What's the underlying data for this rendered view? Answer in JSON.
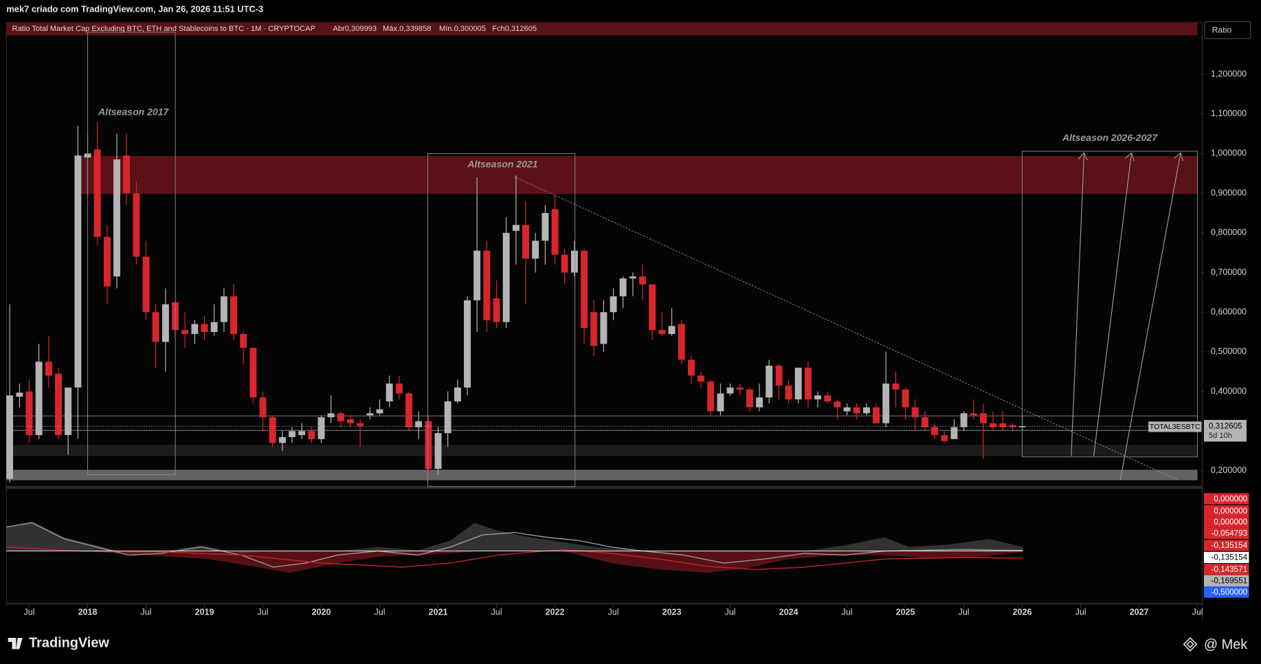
{
  "caption": "mek7 criado com TradingView.com, Jan 26, 2026 11:51 UTC-3",
  "chart_data": {
    "type": "candlestick",
    "title": "Ratio Total Market Cap Excluding BTC, ETH and Stablecoins to BTC · 1M · CRYPTOCAP",
    "ohlc_labels": [
      "Abr0,309993",
      "Máx.0,339858",
      "Mín.0,300005",
      "Fch0,312605"
    ],
    "y_axis_label": "Ratio",
    "x": [
      2017.333,
      2017.417,
      2017.5,
      2017.583,
      2017.667,
      2017.75,
      2017.833,
      2017.917,
      2018,
      2018.083,
      2018.167,
      2018.25,
      2018.333,
      2018.417,
      2018.5,
      2018.583,
      2018.667,
      2018.75,
      2018.833,
      2018.917,
      2019,
      2019.083,
      2019.167,
      2019.25,
      2019.333,
      2019.417,
      2019.5,
      2019.583,
      2019.667,
      2019.75,
      2019.833,
      2019.917,
      2020,
      2020.083,
      2020.167,
      2020.25,
      2020.333,
      2020.417,
      2020.5,
      2020.583,
      2020.667,
      2020.75,
      2020.833,
      2020.917,
      2021,
      2021.083,
      2021.167,
      2021.25,
      2021.333,
      2021.417,
      2021.5,
      2021.583,
      2021.667,
      2021.75,
      2021.833,
      2021.917,
      2022,
      2022.083,
      2022.167,
      2022.25,
      2022.333,
      2022.417,
      2022.5,
      2022.583,
      2022.667,
      2022.75,
      2022.833,
      2022.917,
      2023,
      2023.083,
      2023.167,
      2023.25,
      2023.333,
      2023.417,
      2023.5,
      2023.583,
      2023.667,
      2023.75,
      2023.833,
      2023.917,
      2024,
      2024.083,
      2024.167,
      2024.25,
      2024.333,
      2024.417,
      2024.5,
      2024.583,
      2024.667,
      2024.75,
      2024.833,
      2024.917,
      2025,
      2025.083,
      2025.167,
      2025.25,
      2025.333,
      2025.417,
      2025.5,
      2025.583,
      2025.667,
      2025.75,
      2025.833,
      2025.917,
      2026
    ],
    "open": [
      0.18,
      0.387,
      0.4,
      0.29,
      0.475,
      0.445,
      0.29,
      0.41,
      0.99,
      1.01,
      0.79,
      0.69,
      0.995,
      0.9,
      0.74,
      0.6,
      0.525,
      0.625,
      0.555,
      0.545,
      0.57,
      0.55,
      0.575,
      0.64,
      0.545,
      0.51,
      0.385,
      0.335,
      0.27,
      0.285,
      0.29,
      0.3,
      0.28,
      0.335,
      0.345,
      0.33,
      0.32,
      0.34,
      0.345,
      0.375,
      0.42,
      0.395,
      0.31,
      0.325,
      0.205,
      0.295,
      0.375,
      0.41,
      0.63,
      0.755,
      0.635,
      0.575,
      0.805,
      0.82,
      0.735,
      0.78,
      0.86,
      0.745,
      0.7,
      0.755,
      0.6,
      0.52,
      0.6,
      0.64,
      0.685,
      0.69,
      0.67,
      0.555,
      0.545,
      0.57,
      0.48,
      0.44,
      0.425,
      0.35,
      0.395,
      0.41,
      0.405,
      0.36,
      0.385,
      0.465,
      0.415,
      0.38,
      0.46,
      0.38,
      0.39,
      0.375,
      0.35,
      0.36,
      0.345,
      0.36,
      0.32,
      0.42,
      0.405,
      0.36,
      0.335,
      0.31,
      0.29,
      0.28,
      0.31,
      0.345,
      0.345,
      0.32,
      0.32,
      0.315,
      0.309993
    ],
    "high": [
      0.62,
      0.42,
      0.43,
      0.52,
      0.54,
      0.46,
      0.41,
      1.07,
      1.05,
      1.08,
      0.82,
      1.05,
      1.05,
      0.93,
      0.78,
      0.62,
      0.66,
      0.63,
      0.6,
      0.58,
      0.59,
      0.62,
      0.66,
      0.67,
      0.55,
      0.51,
      0.4,
      0.34,
      0.3,
      0.31,
      0.32,
      0.31,
      0.34,
      0.39,
      0.35,
      0.34,
      0.33,
      0.36,
      0.38,
      0.44,
      0.44,
      0.4,
      0.35,
      0.34,
      0.31,
      0.4,
      0.43,
      0.64,
      0.94,
      0.78,
      0.68,
      0.84,
      0.945,
      0.88,
      0.8,
      0.87,
      0.9,
      0.76,
      0.78,
      0.76,
      0.63,
      0.63,
      0.66,
      0.69,
      0.7,
      0.72,
      0.67,
      0.6,
      0.61,
      0.58,
      0.49,
      0.45,
      0.43,
      0.42,
      0.42,
      0.42,
      0.41,
      0.42,
      0.48,
      0.47,
      0.43,
      0.46,
      0.475,
      0.4,
      0.4,
      0.38,
      0.37,
      0.37,
      0.37,
      0.37,
      0.5,
      0.45,
      0.41,
      0.38,
      0.35,
      0.32,
      0.3,
      0.33,
      0.35,
      0.38,
      0.37,
      0.35,
      0.35,
      0.32,
      0.339858
    ],
    "low": [
      0.17,
      0.36,
      0.27,
      0.28,
      0.41,
      0.28,
      0.24,
      0.28,
      0.89,
      0.77,
      0.62,
      0.66,
      0.87,
      0.72,
      0.58,
      0.46,
      0.45,
      0.53,
      0.51,
      0.52,
      0.53,
      0.54,
      0.55,
      0.53,
      0.47,
      0.37,
      0.3,
      0.26,
      0.25,
      0.27,
      0.28,
      0.27,
      0.27,
      0.32,
      0.31,
      0.31,
      0.26,
      0.33,
      0.34,
      0.36,
      0.38,
      0.3,
      0.28,
      0.19,
      0.19,
      0.26,
      0.37,
      0.39,
      0.55,
      0.55,
      0.56,
      0.56,
      0.72,
      0.62,
      0.7,
      0.72,
      0.72,
      0.67,
      0.69,
      0.52,
      0.49,
      0.5,
      0.58,
      0.61,
      0.64,
      0.63,
      0.53,
      0.54,
      0.54,
      0.47,
      0.42,
      0.41,
      0.34,
      0.34,
      0.39,
      0.39,
      0.35,
      0.35,
      0.37,
      0.38,
      0.37,
      0.37,
      0.36,
      0.36,
      0.37,
      0.33,
      0.34,
      0.33,
      0.34,
      0.32,
      0.31,
      0.36,
      0.33,
      0.3,
      0.3,
      0.28,
      0.27,
      0.28,
      0.3,
      0.33,
      0.23,
      0.3,
      0.3,
      0.3,
      0.300005
    ],
    "close": [
      0.39,
      0.397,
      0.29,
      0.475,
      0.44,
      0.29,
      0.41,
      0.995,
      1.0,
      0.79,
      0.665,
      0.985,
      0.9,
      0.74,
      0.6,
      0.525,
      0.62,
      0.555,
      0.545,
      0.57,
      0.55,
      0.575,
      0.64,
      0.545,
      0.51,
      0.385,
      0.335,
      0.27,
      0.285,
      0.3,
      0.3,
      0.28,
      0.335,
      0.345,
      0.325,
      0.32,
      0.313,
      0.345,
      0.355,
      0.42,
      0.395,
      0.31,
      0.325,
      0.205,
      0.295,
      0.375,
      0.41,
      0.63,
      0.755,
      0.58,
      0.575,
      0.8,
      0.82,
      0.735,
      0.78,
      0.85,
      0.745,
      0.7,
      0.755,
      0.56,
      0.515,
      0.6,
      0.64,
      0.685,
      0.69,
      0.67,
      0.555,
      0.545,
      0.565,
      0.48,
      0.44,
      0.425,
      0.35,
      0.395,
      0.41,
      0.405,
      0.36,
      0.385,
      0.465,
      0.415,
      0.38,
      0.46,
      0.38,
      0.39,
      0.375,
      0.36,
      0.36,
      0.345,
      0.36,
      0.32,
      0.42,
      0.405,
      0.36,
      0.335,
      0.31,
      0.29,
      0.275,
      0.31,
      0.345,
      0.34,
      0.32,
      0.31,
      0.31,
      0.31,
      0.312605
    ],
    "up_color": "#b4b4b4",
    "down_color": "#d9262c",
    "xlim": [
      2017.25,
      2027.52
    ],
    "ylim": [
      0.16,
      1.33
    ],
    "xticks": [
      {
        "value": 2017.5,
        "label": "Jul"
      },
      2018,
      {
        "value": 2018.5,
        "label": "Jul"
      },
      2019,
      {
        "value": 2019.5,
        "label": "Jul"
      },
      2020,
      {
        "value": 2020.5,
        "label": "Jul"
      },
      2021,
      {
        "value": 2021.5,
        "label": "Jul"
      },
      2022,
      {
        "value": 2022.5,
        "label": "Jul"
      },
      2023,
      {
        "value": 2023.5,
        "label": "Jul"
      },
      2024,
      {
        "value": 2024.5,
        "label": "Jul"
      },
      2025,
      {
        "value": 2025.5,
        "label": "Jul"
      },
      2026,
      {
        "value": 2026.5,
        "label": "Jul"
      },
      2027,
      {
        "value": 2027.5,
        "label": "Jul"
      }
    ],
    "yticks": [
      {
        "value": 0.2,
        "label": "0,200000"
      },
      {
        "value": 0.4,
        "label": "0,400000"
      },
      {
        "value": 0.5,
        "label": "0,500000"
      },
      {
        "value": 0.6,
        "label": "0,600000"
      },
      {
        "value": 0.7,
        "label": "0,700000"
      },
      {
        "value": 0.8,
        "label": "0,800000"
      },
      {
        "value": 0.9,
        "label": "0,900000"
      },
      {
        "value": 1.0,
        "label": "1,000000"
      },
      {
        "value": 1.1,
        "label": "1,100000"
      },
      {
        "value": 1.2,
        "label": "1,200000"
      }
    ],
    "grid": false,
    "annotations": [
      "Altseason 2017",
      "Altseason 2021",
      "Altseason 2026-2027"
    ],
    "last_price": {
      "symbol": "TOTAL3ESBTC",
      "label": "0,312605",
      "countdown": "5d 10h"
    }
  },
  "indicator": {
    "labels": [
      {
        "text": "0,000000",
        "color": "#d9262c"
      },
      {
        "text": "0,000000",
        "color": "#d9262c"
      },
      {
        "text": "0,000000",
        "color": "#d9262c"
      },
      {
        "text": "-0,054793",
        "color": "#d9262c"
      },
      {
        "text": "-0,135154",
        "color": "#d9262c"
      },
      {
        "text": "-0,135154",
        "color": "#ffffff"
      },
      {
        "text": "-0,143571",
        "color": "#d9262c"
      },
      {
        "text": "-0,169551",
        "color": "#b4b4b4"
      },
      {
        "text": "-0,500000",
        "color": "#2962ff"
      }
    ]
  },
  "footer": {
    "logo": "TradingView",
    "author": "@ Mek"
  }
}
